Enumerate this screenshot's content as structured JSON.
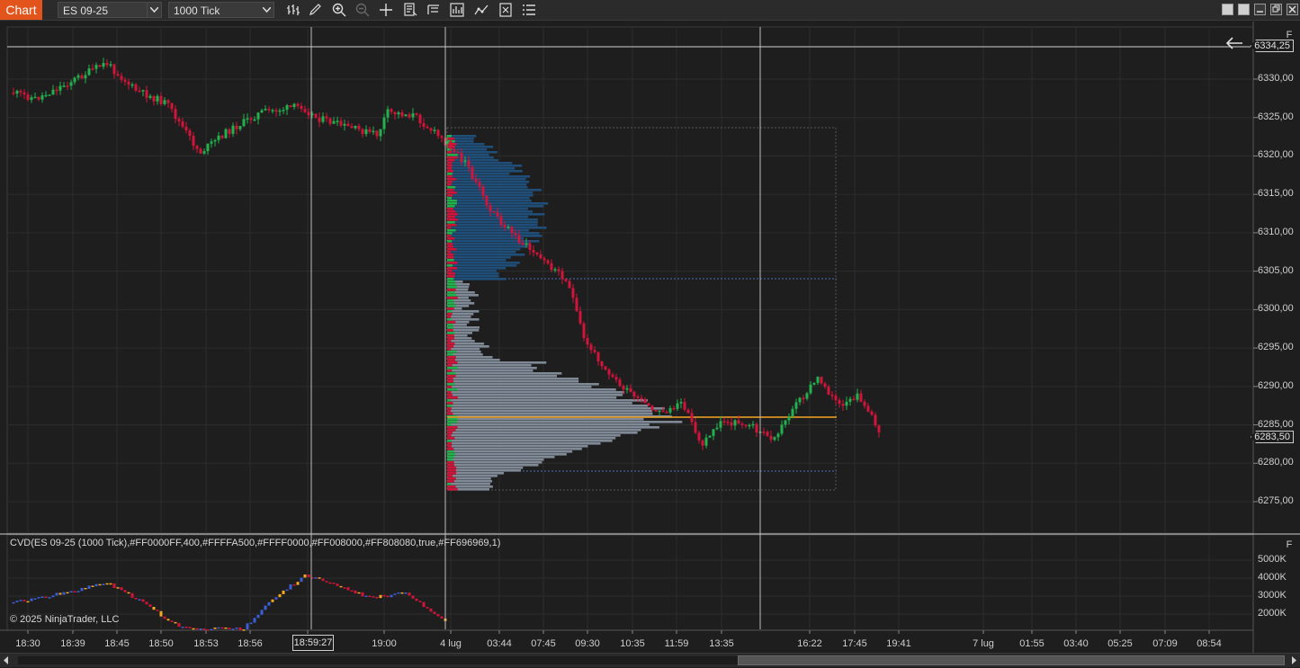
{
  "toolbar": {
    "chart_tab": "Chart",
    "instrument": "ES 09-25",
    "interval": "1000 Tick",
    "icons": [
      "bar-type-icon",
      "draw-pencil-icon",
      "zoom-in-icon",
      "zoom-out-icon",
      "crosshair-icon",
      "data-box-icon",
      "properties-icon",
      "strategies-icon",
      "indicators-icon",
      "templates-icon",
      "menu-icon"
    ]
  },
  "price_axis": {
    "labels": [
      "6330,00",
      "6325,00",
      "6320,00",
      "6315,00",
      "6310,00",
      "6305,00",
      "6300,00",
      "6295,00",
      "6290,00",
      "6285,00",
      "6280,00",
      "6275,00"
    ],
    "current_price": "6283,50",
    "crosshair_price": "6334,25",
    "flag": "F"
  },
  "cvd_panel": {
    "title": "CVD(ES 09-25 (1000 Tick),#FF0000FF,400,#FFFFA500,#FFFF0000,#FF008000,#FF808080,true,#FF696969,1)",
    "axis_labels": [
      "5000K",
      "4000K",
      "3000K",
      "2000K"
    ],
    "flag": "F"
  },
  "copyright": "© 2025 NinjaTrader, LLC",
  "time_axis": {
    "labels": [
      "18:30",
      "18:39",
      "18:45",
      "18:50",
      "18:53",
      "18:56",
      "18:59",
      "19:00",
      "4 lug",
      "03:44",
      "07:45",
      "09:30",
      "10:35",
      "11:59",
      "13:35",
      "16:22",
      "17:45",
      "19:41",
      "7 lug",
      "01:55",
      "03:40",
      "05:25",
      "07:09",
      "08:54"
    ],
    "crosshair_time": "18:59:27"
  },
  "colors": {
    "up": "#22b14c",
    "down": "#d2143a",
    "background": "#1e1e1e",
    "grid": "#2c2c2c",
    "volume_profile_top": "#1f4e79",
    "volume_profile_bottom": "#7f8a96",
    "poc": "#f5a623",
    "tab": "#e2541b"
  }
}
